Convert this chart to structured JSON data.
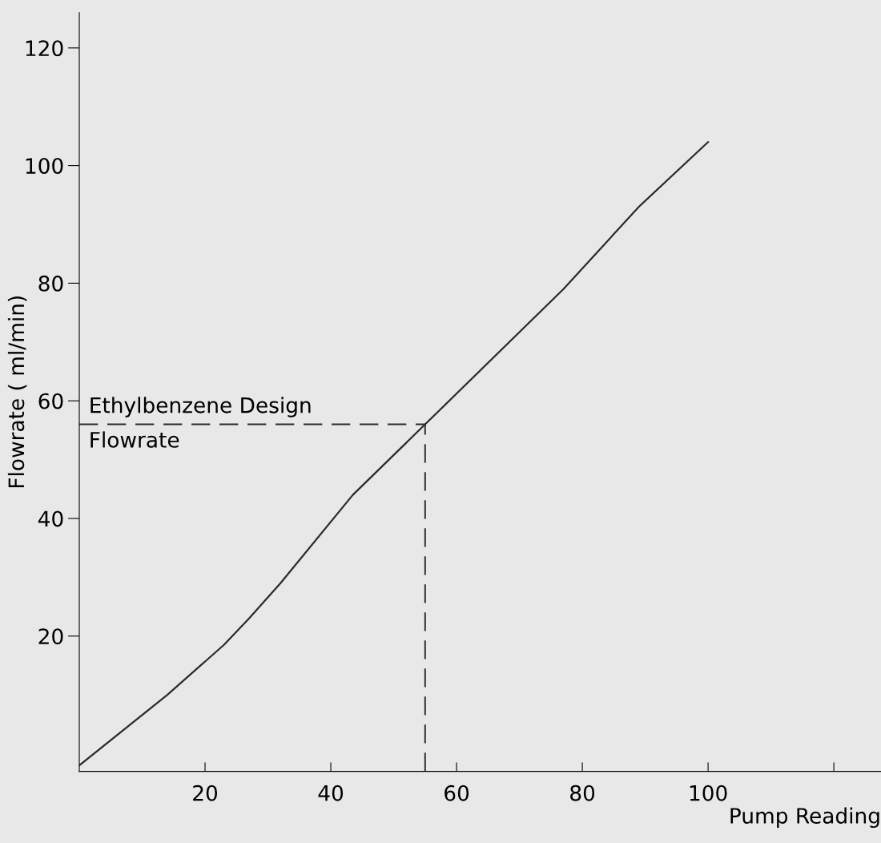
{
  "chart_data": {
    "type": "line",
    "xlabel": "Pump Reading",
    "ylabel": "Flowrate ( ml/min)",
    "x": [
      0,
      14,
      23,
      27,
      32,
      43.5,
      55,
      77,
      89,
      100
    ],
    "series": [
      {
        "color": "#2a2a2a",
        "values": [
          -2,
          10,
          18.5,
          23,
          29,
          44,
          56,
          79,
          93,
          104
        ]
      }
    ],
    "xlim": [
      0,
      127.5
    ],
    "ylim": [
      -3,
      126
    ],
    "xticks": [
      20,
      40,
      60,
      80,
      100,
      {
        "value": 120,
        "label": null
      }
    ],
    "yticks": [
      20,
      40,
      60,
      80,
      100,
      120
    ],
    "ref_lines": [
      {
        "axis": "y",
        "value": 56,
        "label": "Ethylbenzene Design\nFlowrate",
        "line_style": "dashed",
        "color": "#2a2a2a"
      },
      {
        "axis": "x",
        "value": 55,
        "line_style": "dashed",
        "color": "#2a2a2a"
      }
    ],
    "grid": false,
    "legend": false,
    "marker": "none",
    "line_style": "solid"
  }
}
